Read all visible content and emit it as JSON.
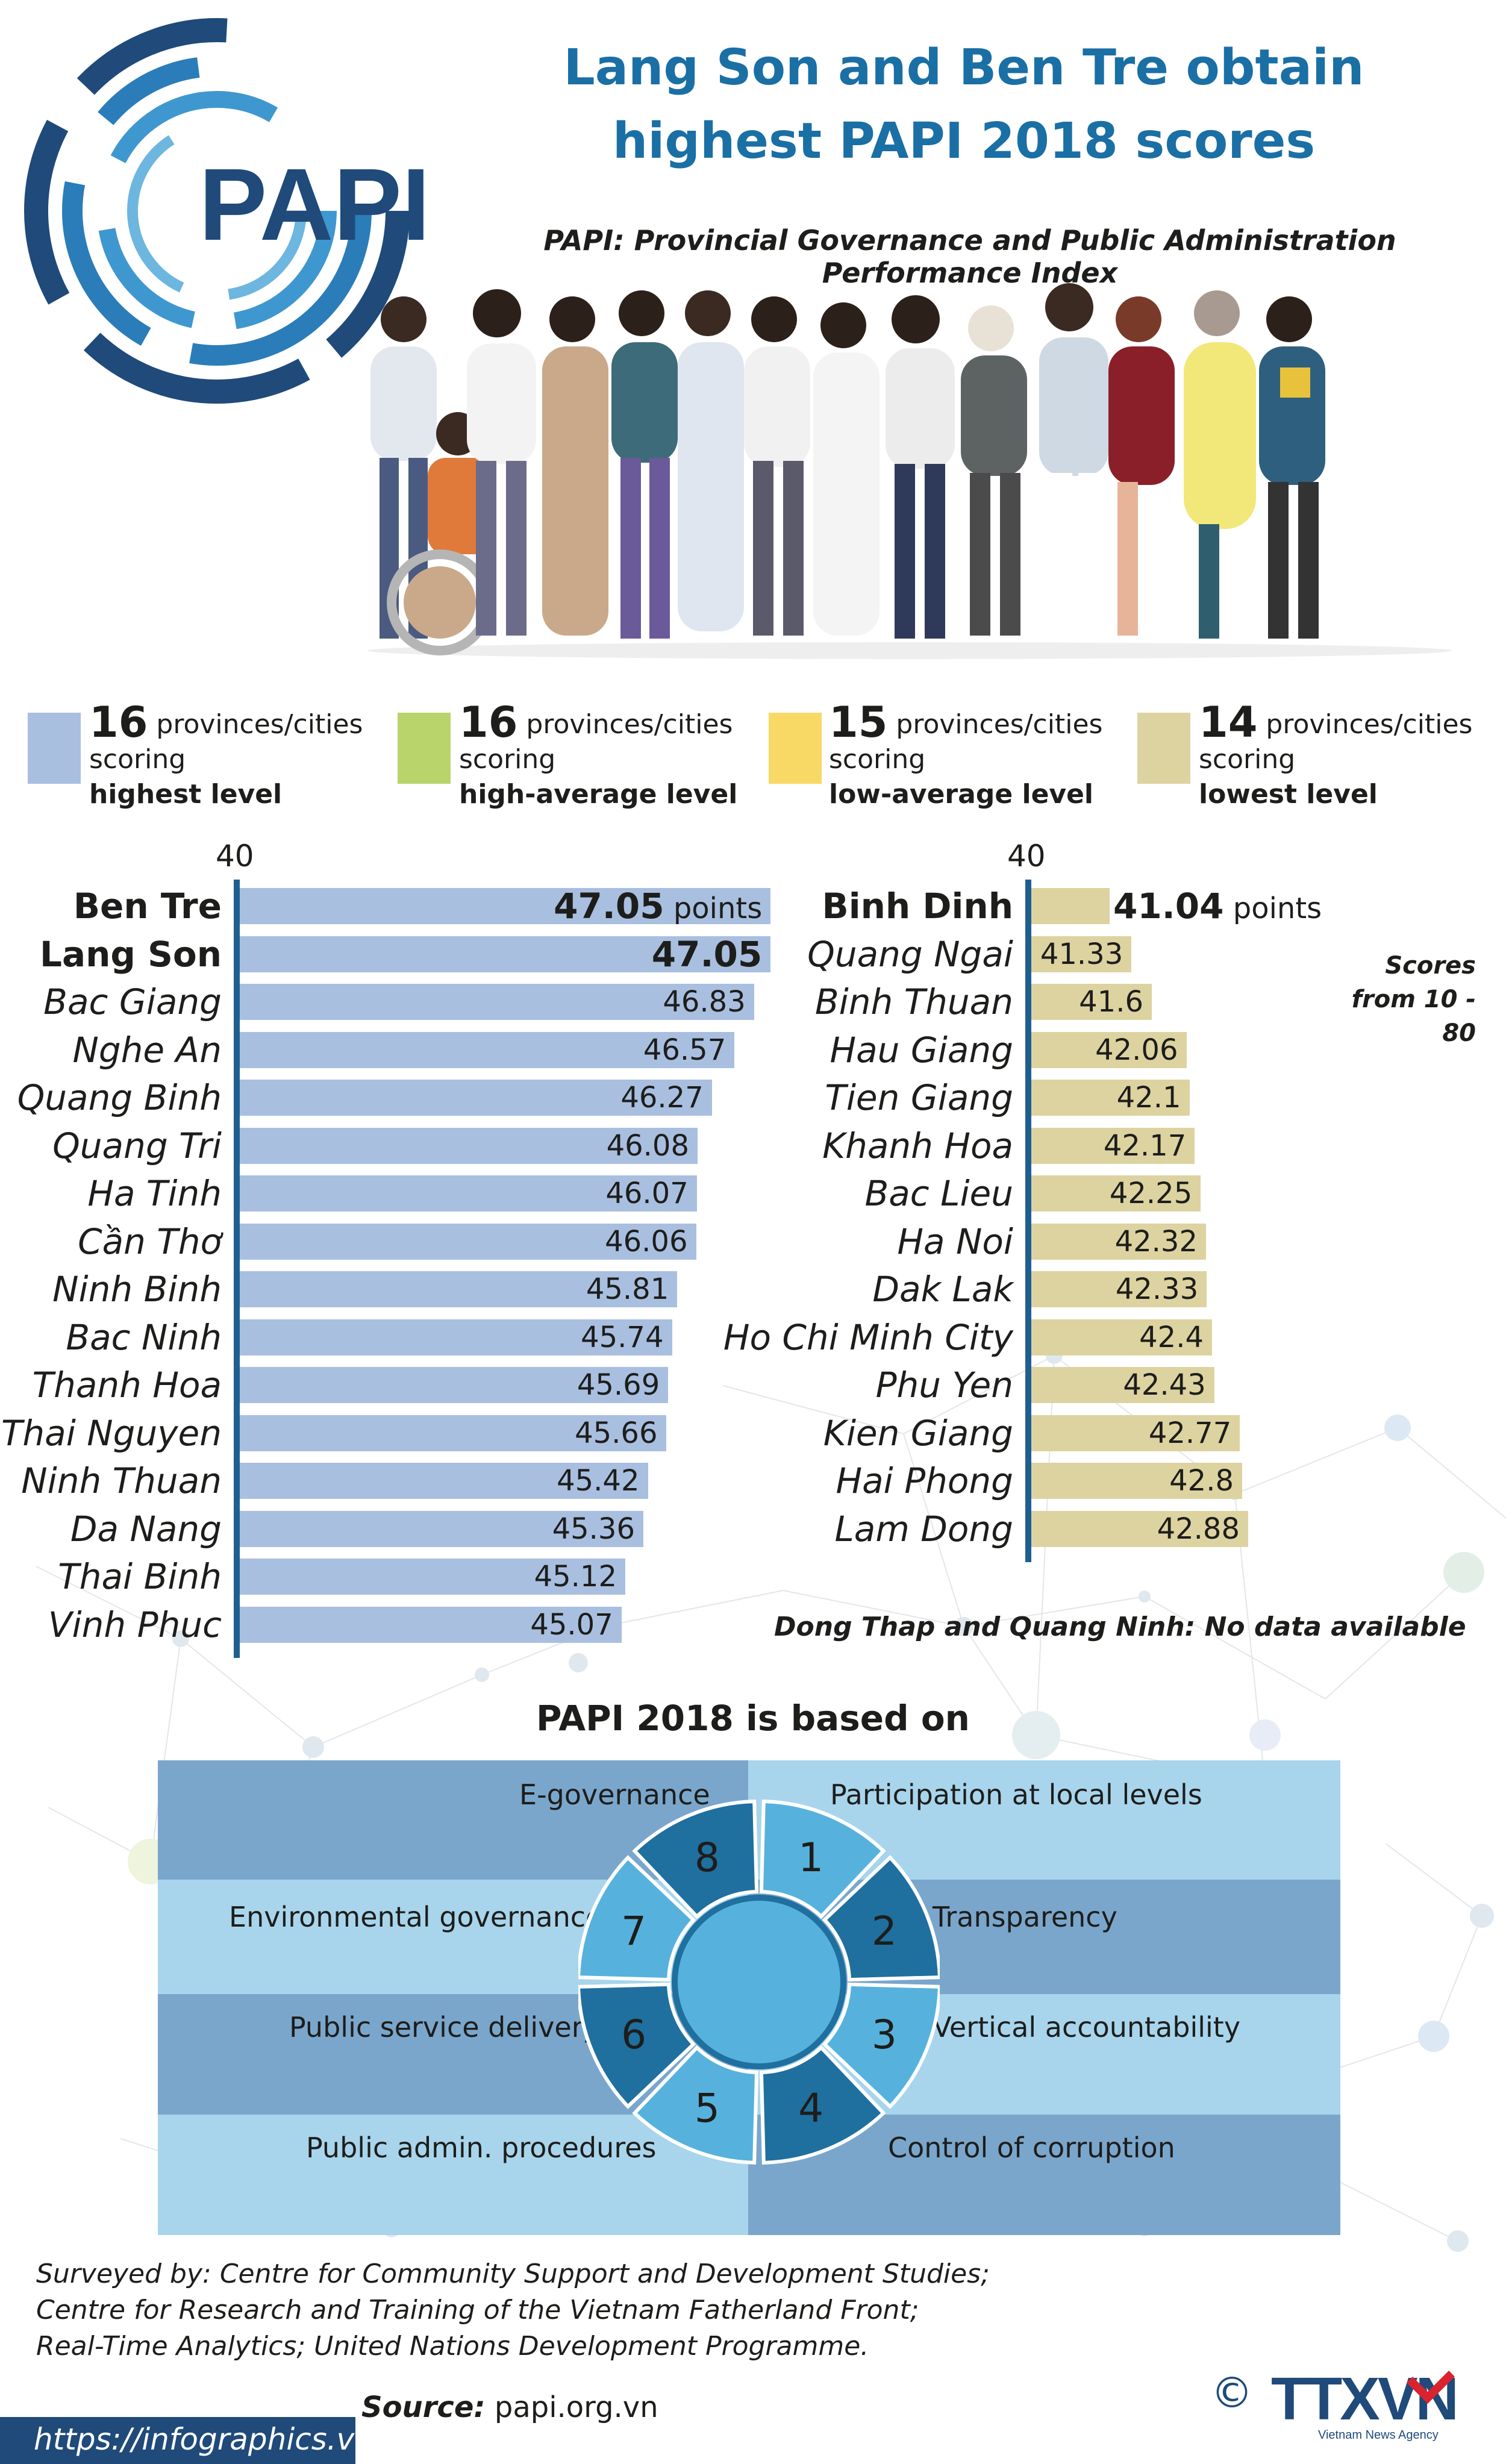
{
  "header": {
    "logo_text": "PAPI",
    "title_line1": "Lang Son and Ben Tre obtain",
    "title_line2": "highest PAPI 2018 scores",
    "subtitle": "PAPI: Provincial Governance and Public Administration Performance Index"
  },
  "legend": [
    {
      "count": "16",
      "text": "provinces/cities",
      "line2": "scoring",
      "level": "highest level",
      "color": "#a9bfe0"
    },
    {
      "count": "16",
      "text": "provinces/cities",
      "line2": "scoring",
      "level": "high-average level",
      "color": "#b8d46a"
    },
    {
      "count": "15",
      "text": "provinces/cities",
      "line2": "scoring",
      "level": "low-average level",
      "color": "#f8d966"
    },
    {
      "count": "14",
      "text": "provinces/cities",
      "line2": "scoring",
      "level": "lowest level",
      "color": "#ddd3a0"
    }
  ],
  "chart_data": [
    {
      "type": "bar",
      "orientation": "horizontal",
      "axis_start": "40",
      "unit": "points",
      "categories": [
        "Ben Tre",
        "Lang Son",
        "Bac Giang",
        "Nghe An",
        "Quang Binh",
        "Quang Tri",
        "Ha Tinh",
        "Cần Thơ",
        "Ninh Binh",
        "Bac Ninh",
        "Thanh Hoa",
        "Thai Nguyen",
        "Ninh Thuan",
        "Da Nang",
        "Thai Binh",
        "Vinh Phuc"
      ],
      "values": [
        47.05,
        47.05,
        46.83,
        46.57,
        46.27,
        46.08,
        46.07,
        46.06,
        45.81,
        45.74,
        45.69,
        45.66,
        45.42,
        45.36,
        45.12,
        45.07
      ],
      "labels": [
        "47.05",
        "47.05",
        "46.83",
        "46.57",
        "46.27",
        "46.08",
        "46.07",
        "46.06",
        "45.81",
        "45.74",
        "45.69",
        "45.66",
        "45.42",
        "45.36",
        "45.12",
        "45.07"
      ],
      "xlim": [
        40,
        48
      ],
      "color": "#a9bfe0"
    },
    {
      "type": "bar",
      "orientation": "horizontal",
      "axis_start": "40",
      "unit": "points",
      "categories": [
        "Binh Dinh",
        "Quang Ngai",
        "Binh Thuan",
        "Hau Giang",
        "Tien Giang",
        "Khanh Hoa",
        "Bac Lieu",
        "Ha Noi",
        "Dak Lak",
        "Ho Chi Minh City",
        "Phu Yen",
        "Kien Giang",
        "Hai Phong",
        "Lam Dong"
      ],
      "values": [
        41.04,
        41.33,
        41.6,
        42.06,
        42.1,
        42.17,
        42.25,
        42.32,
        42.33,
        42.4,
        42.43,
        42.77,
        42.8,
        42.88
      ],
      "labels": [
        "41.04",
        "41.33",
        "41.6",
        "42.06",
        "42.1",
        "42.17",
        "42.25",
        "42.32",
        "42.33",
        "42.4",
        "42.43",
        "42.77",
        "42.8",
        "42.88"
      ],
      "xlim": [
        40,
        48
      ],
      "color": "#ddd3a0"
    }
  ],
  "notes": {
    "scores_line1": "Scores",
    "scores_line2": "from 10 - 80",
    "no_data": "Dong Thap and Quang Ninh: No data available"
  },
  "based_on": {
    "title": "PAPI 2018 is based on",
    "items": [
      {
        "num": "1",
        "label": "Participation at local levels"
      },
      {
        "num": "2",
        "label": "Transparency"
      },
      {
        "num": "3",
        "label": "Vertical accountability"
      },
      {
        "num": "4",
        "label": "Control of corruption"
      },
      {
        "num": "5",
        "label": "Public admin. procedures"
      },
      {
        "num": "6",
        "label": "Public service delivery"
      },
      {
        "num": "7",
        "label": "Environmental governance"
      },
      {
        "num": "8",
        "label": "E-governance"
      }
    ]
  },
  "footer": {
    "surveyed_line1": "Surveyed by: Centre for Community Support and Development Studies;",
    "surveyed_line2": "Centre for Research and Training of the Vietnam Fatherland Front;",
    "surveyed_line3": "Real-Time Analytics; United Nations Development Programme.",
    "source_label": "Source:",
    "source_value": "papi.org.vn",
    "url": "https://infographics.vn",
    "agency_logo": "TTXVN",
    "agency_sub": "Vietnam News Agency",
    "copyright": "©"
  }
}
